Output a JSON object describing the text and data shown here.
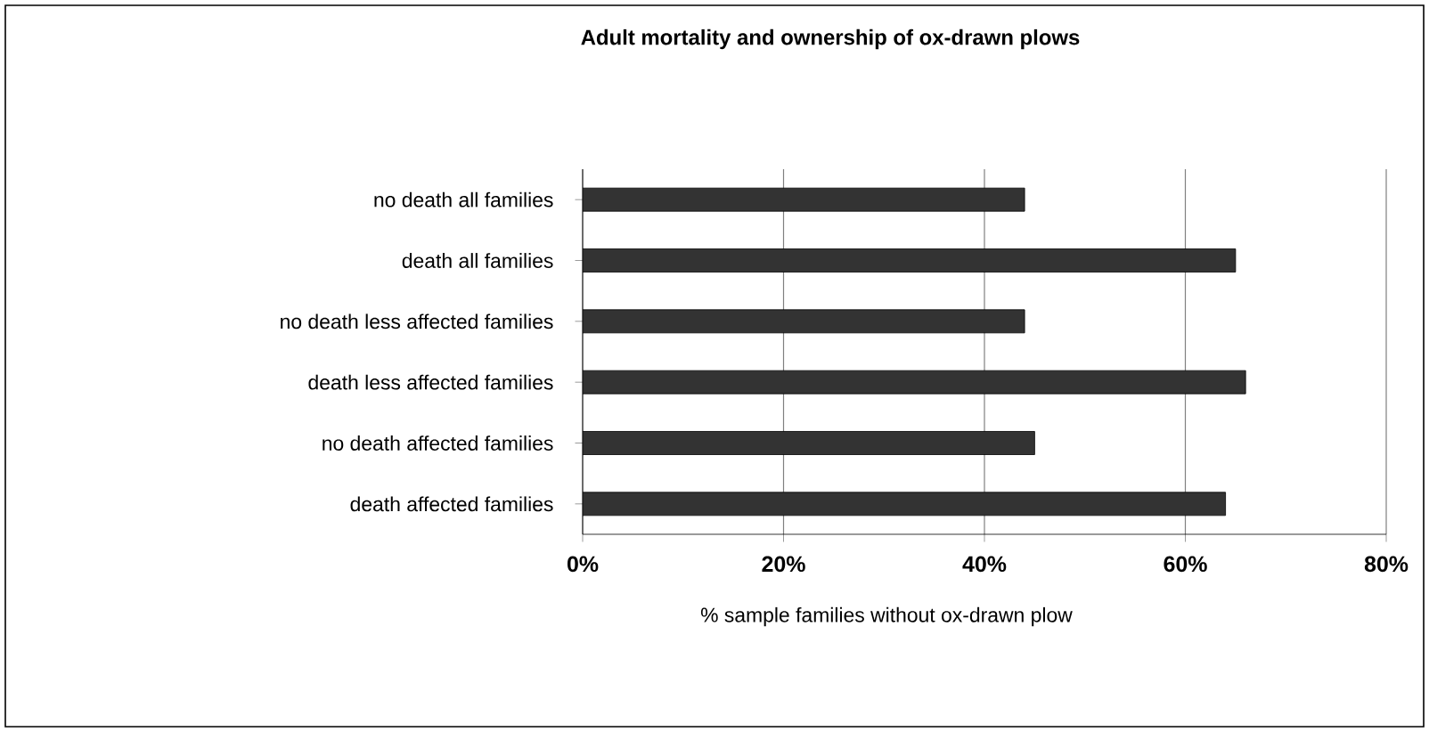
{
  "chart_data": {
    "type": "bar",
    "orientation": "horizontal",
    "title": "Adult mortality and ownership of ox-drawn plows",
    "xlabel": "% sample families without ox-drawn plow",
    "categories": [
      "no death all families",
      "death all families",
      "no death less affected families",
      "death less affected families",
      "no death affected families",
      "death affected families"
    ],
    "values": [
      44,
      65,
      44,
      66,
      45,
      64
    ],
    "color": "#333333",
    "xlim": [
      0,
      80
    ],
    "xticks": [
      {
        "value": 0,
        "label": "0%"
      },
      {
        "value": 20,
        "label": "20%"
      },
      {
        "value": 40,
        "label": "40%"
      },
      {
        "value": 60,
        "label": "60%"
      },
      {
        "value": 80,
        "label": "80%"
      }
    ],
    "grid": "x",
    "legend": false
  }
}
